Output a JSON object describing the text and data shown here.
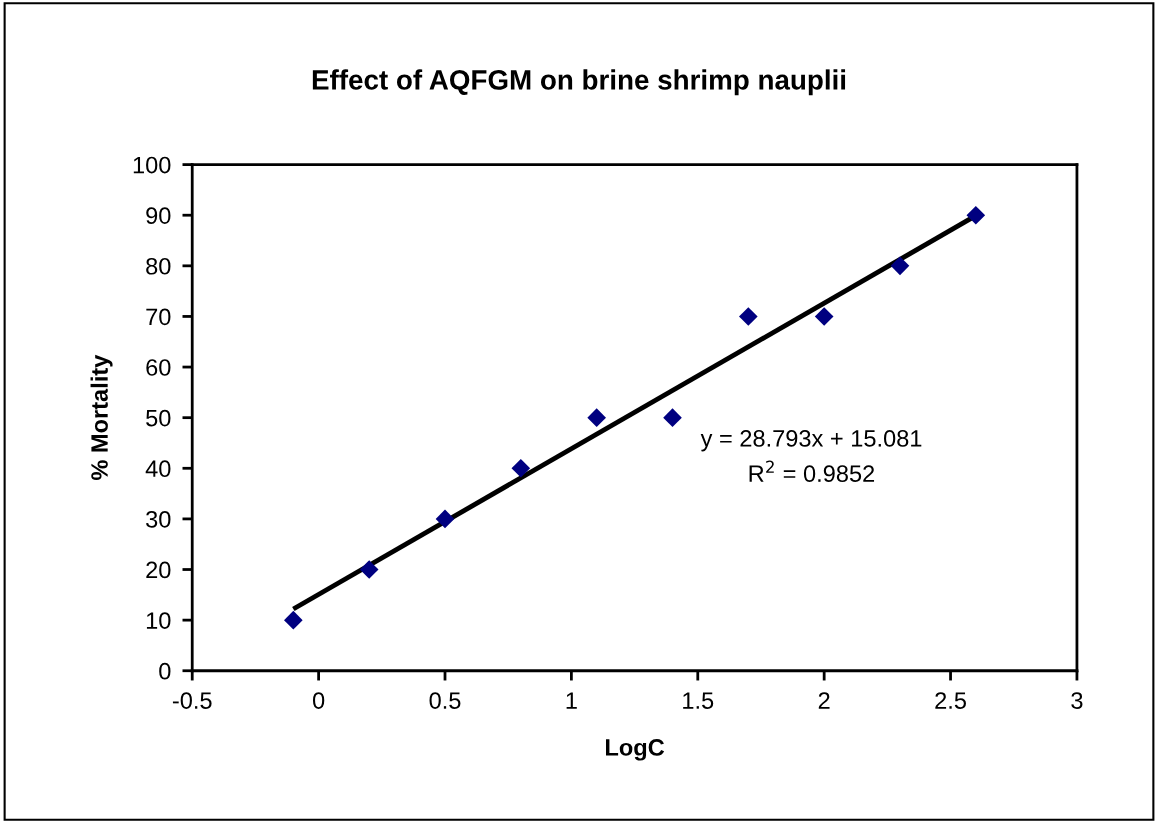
{
  "chart_data": {
    "type": "scatter",
    "title": "Effect of AQFGM on brine shrimp nauplii",
    "xlabel": "LogC",
    "ylabel": "% Mortality",
    "series": [
      {
        "color": "#000080",
        "marker": "diamond",
        "x": [
          -0.1,
          0.2,
          0.5,
          0.8,
          1.1,
          1.4,
          1.7,
          2.0,
          2.3,
          2.6
        ],
        "values": [
          10,
          20,
          30,
          40,
          50,
          50,
          70,
          70,
          80,
          90
        ]
      },
      {
        "type": "line",
        "color": "#000000",
        "line_style": "solid",
        "marker": "none",
        "x": [
          -0.1,
          2.6
        ],
        "values": [
          12.2,
          89.9
        ]
      }
    ],
    "annotations": [
      "y = 28.793x + 15.081",
      "R$^{2}$ = 0.9852"
    ],
    "xlim": [
      -0.5,
      3
    ],
    "xticks": [
      -0.5,
      0,
      0.5,
      1,
      1.5,
      2,
      2.5,
      3
    ],
    "ylim": [
      0,
      100
    ],
    "yticks": [
      0,
      10,
      20,
      30,
      40,
      50,
      60,
      70,
      80,
      90,
      100
    ],
    "grid": false,
    "legend": false
  }
}
